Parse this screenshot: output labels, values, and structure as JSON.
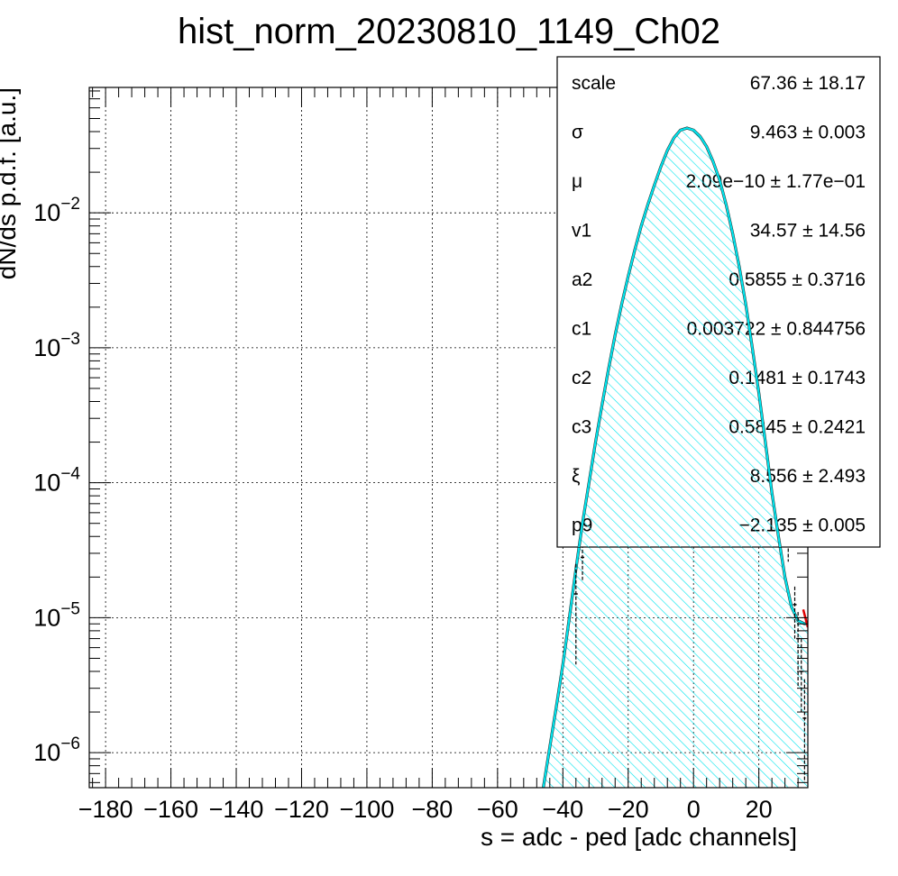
{
  "chart_data": {
    "type": "histogram",
    "title": "hist_norm_20230810_1149_Ch02",
    "xlabel": "s = adc - ped [adc channels]",
    "ylabel": "dN/ds p.d.f. [a.u.]",
    "xlim": [
      -185,
      35
    ],
    "ylim": [
      5.5e-07,
      0.085
    ],
    "yscale": "log",
    "grid": true,
    "x_ticks": [
      "−180",
      "−160",
      "−140",
      "−120",
      "−100",
      "−80",
      "−60",
      "−40",
      "−20",
      "0",
      "20"
    ],
    "x_tick_values": [
      -180,
      -160,
      -140,
      -120,
      -100,
      -80,
      -60,
      -40,
      -20,
      0,
      20
    ],
    "y_ticks": [
      {
        "base": "10",
        "exp": "−6",
        "value": 1e-06
      },
      {
        "base": "10",
        "exp": "−5",
        "value": 1e-05
      },
      {
        "base": "10",
        "exp": "−4",
        "value": 0.0001
      },
      {
        "base": "10",
        "exp": "−3",
        "value": 0.001
      },
      {
        "base": "10",
        "exp": "−2",
        "value": 0.01
      }
    ],
    "fit_curve": {
      "color": "#00e5ee",
      "hatch": true,
      "points": [
        [
          -46,
          5.5e-07
        ],
        [
          -44,
          1.1e-06
        ],
        [
          -42,
          2.2e-06
        ],
        [
          -40,
          4.5e-06
        ],
        [
          -38,
          1e-05
        ],
        [
          -36,
          2.3e-05
        ],
        [
          -34,
          5e-05
        ],
        [
          -32,
          0.0001
        ],
        [
          -30,
          0.0002
        ],
        [
          -28,
          0.00038
        ],
        [
          -26,
          0.0007
        ],
        [
          -24,
          0.00125
        ],
        [
          -22,
          0.0021
        ],
        [
          -20,
          0.0034
        ],
        [
          -18,
          0.0053
        ],
        [
          -16,
          0.008
        ],
        [
          -14,
          0.0115
        ],
        [
          -12,
          0.016
        ],
        [
          -10,
          0.022
        ],
        [
          -8,
          0.029
        ],
        [
          -6,
          0.036
        ],
        [
          -4,
          0.041
        ],
        [
          -2,
          0.0425
        ],
        [
          0,
          0.041
        ],
        [
          2,
          0.037
        ],
        [
          4,
          0.031
        ],
        [
          6,
          0.024
        ],
        [
          8,
          0.0175
        ],
        [
          10,
          0.0115
        ],
        [
          12,
          0.007
        ],
        [
          14,
          0.004
        ],
        [
          16,
          0.0021
        ],
        [
          18,
          0.001
        ],
        [
          20,
          0.00046
        ],
        [
          22,
          0.0002
        ],
        [
          24,
          8.5e-05
        ],
        [
          26,
          4e-05
        ],
        [
          28,
          2e-05
        ],
        [
          30,
          1.2e-05
        ],
        [
          32,
          9.5e-06
        ],
        [
          34,
          9e-06
        ],
        [
          35,
          9e-06
        ]
      ]
    },
    "data_points": [
      {
        "x": -36,
        "y": 1.5e-05,
        "lo": 4.5e-06,
        "hi": 2.5e-05
      },
      {
        "x": -34,
        "y": 2.8e-05,
        "lo": 1.9e-05,
        "hi": 3.5e-05
      },
      {
        "x": 29,
        "y": 3.4e-05,
        "lo": 2.6e-05,
        "hi": 4.3e-05
      },
      {
        "x": 31,
        "y": 1.25e-05,
        "lo": 7e-06,
        "hi": 1.7e-05
      },
      {
        "x": 32,
        "y": 7e-06,
        "lo": 3e-06,
        "hi": 1.1e-05
      },
      {
        "x": 33,
        "y": 4e-06,
        "lo": 2e-06,
        "hi": 7e-06
      },
      {
        "x": 34,
        "y": 1.8e-06,
        "lo": 6e-07,
        "hi": 3.5e-06
      }
    ],
    "red_fit": {
      "color": "#dd0000",
      "points": [
        [
          33.6,
          1.15e-05
        ],
        [
          35,
          8.5e-06
        ]
      ]
    }
  },
  "stats": {
    "rows": [
      {
        "name": "scale",
        "value": "67.36 ± 18.17"
      },
      {
        "name": "σ",
        "value": "9.463 ± 0.003"
      },
      {
        "name": "μ",
        "value": "2.09e−10 ± 1.77e−01"
      },
      {
        "name": "v1",
        "value": "34.57 ± 14.56"
      },
      {
        "name": "a2",
        "value": "0.5855 ± 0.3716"
      },
      {
        "name": "c1",
        "value": "0.003722 ± 0.844756"
      },
      {
        "name": "c2",
        "value": "0.1481 ± 0.1743"
      },
      {
        "name": "c3",
        "value": "0.5845 ± 0.2421"
      },
      {
        "name": "ξ",
        "value": "8.556 ± 2.493"
      },
      {
        "name": "p9",
        "value": "−2.135 ± 0.005"
      }
    ]
  }
}
